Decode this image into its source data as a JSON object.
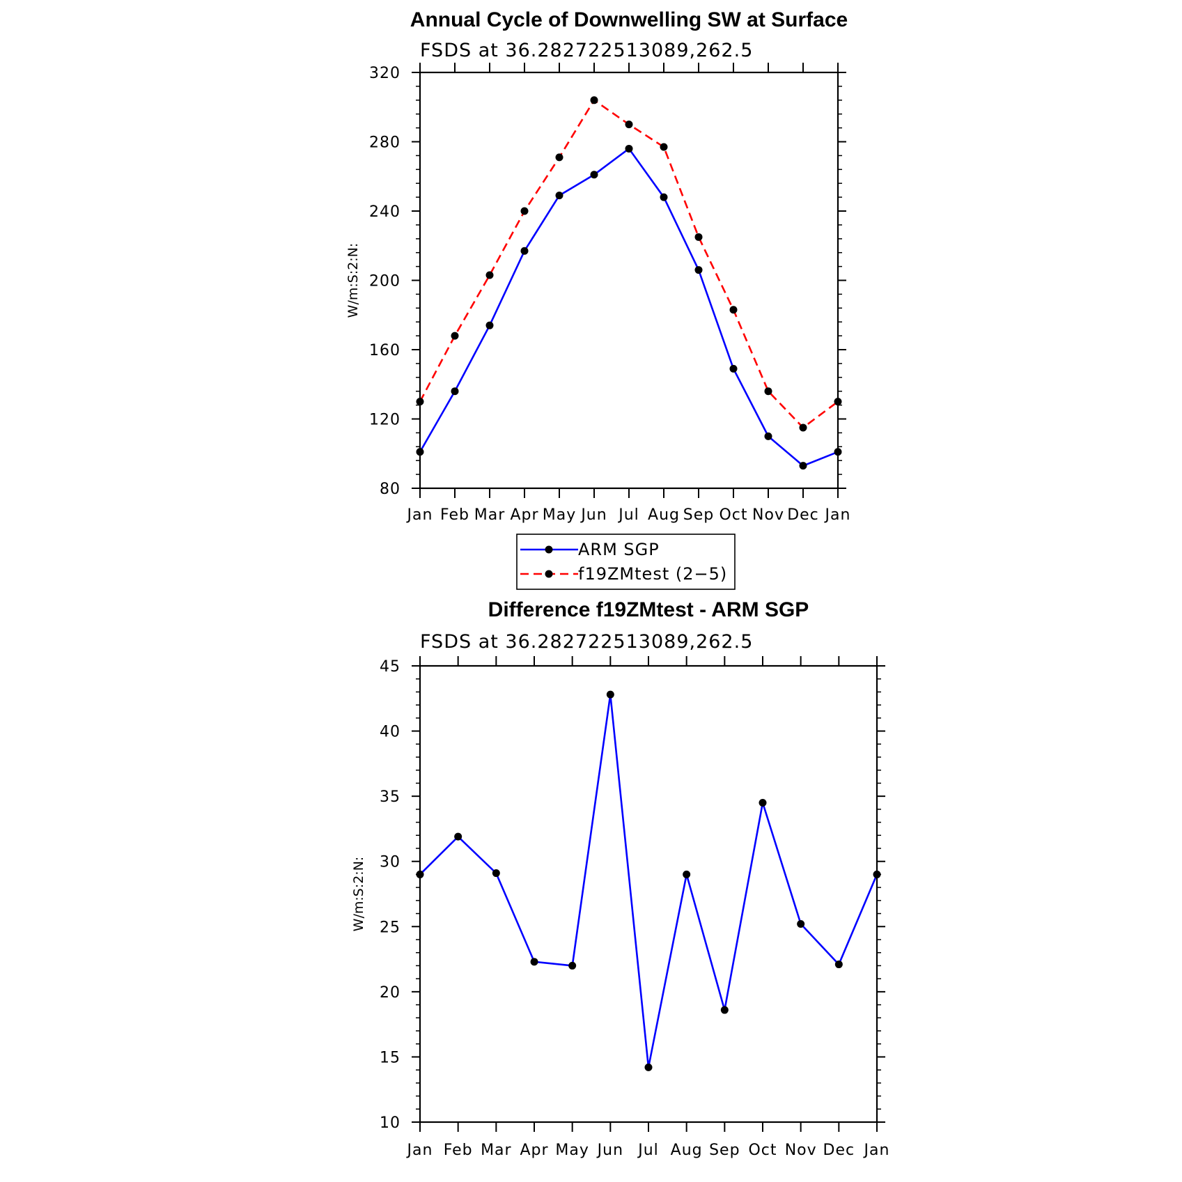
{
  "chart_data": [
    {
      "type": "line",
      "title": "Annual Cycle of Downwelling SW at Surface",
      "subtitle": "FSDS at 36.282722513089,262.5",
      "ylabel": "W/m:S:2:N:",
      "xlabel": "",
      "categories": [
        "Jan",
        "Feb",
        "Mar",
        "Apr",
        "May",
        "Jun",
        "Jul",
        "Aug",
        "Sep",
        "Oct",
        "Nov",
        "Dec",
        "Jan"
      ],
      "ylim": [
        80,
        320
      ],
      "yticks": [
        80,
        120,
        160,
        200,
        240,
        280,
        320
      ],
      "series": [
        {
          "name": "ARM SGP",
          "color": "#0000ff",
          "dash": "solid",
          "values": [
            101,
            136,
            174,
            217,
            249,
            261,
            276,
            248,
            206,
            149,
            110,
            93,
            101
          ]
        },
        {
          "name": "f19ZMtest (2−5)",
          "color": "#ff0000",
          "dash": "dashed",
          "values": [
            130,
            168,
            203,
            240,
            271,
            304,
            290,
            277,
            225,
            183,
            136,
            115,
            130
          ]
        }
      ],
      "legend": "below"
    },
    {
      "type": "line",
      "title": "Difference f19ZMtest - ARM SGP",
      "subtitle": "FSDS at 36.282722513089,262.5",
      "ylabel": "W/m:S:2:N:",
      "xlabel": "",
      "categories": [
        "Jan",
        "Feb",
        "Mar",
        "Apr",
        "May",
        "Jun",
        "Jul",
        "Aug",
        "Sep",
        "Oct",
        "Nov",
        "Dec",
        "Jan"
      ],
      "ylim": [
        10,
        45
      ],
      "yticks": [
        10,
        15,
        20,
        25,
        30,
        35,
        40,
        45
      ],
      "series": [
        {
          "color": "#0000ff",
          "dash": "solid",
          "values": [
            29.0,
            31.9,
            29.1,
            22.3,
            22.0,
            42.8,
            14.2,
            29.0,
            18.6,
            34.5,
            25.2,
            22.1,
            29.0
          ]
        }
      ]
    }
  ]
}
